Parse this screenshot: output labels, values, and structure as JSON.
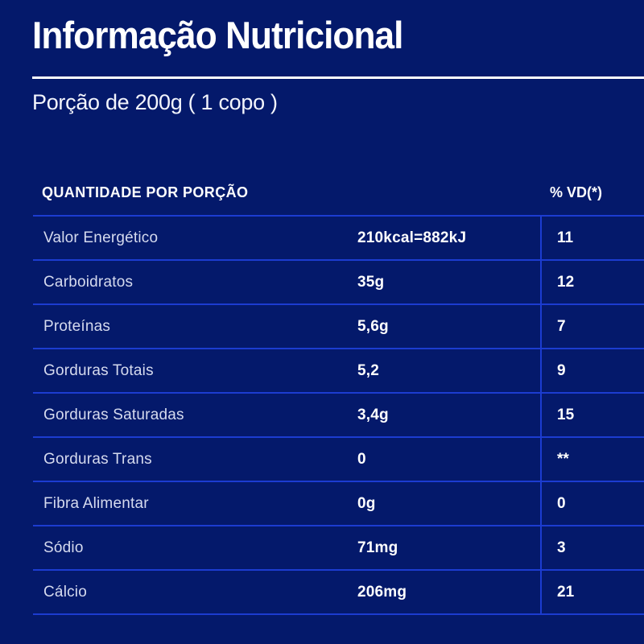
{
  "page": {
    "title": "Informação Nutricional",
    "serving": "Porção de 200g ( 1 copo )"
  },
  "table": {
    "headers": {
      "quantity": "QUANTIDADE POR PORÇÃO",
      "dv": "% VD(*)"
    },
    "rows": [
      {
        "label": "Valor Energético",
        "amount": "210kcal=882kJ",
        "dv": "11"
      },
      {
        "label": "Carboidratos",
        "amount": "35g",
        "dv": "12"
      },
      {
        "label": "Proteínas",
        "amount": "5,6g",
        "dv": "7"
      },
      {
        "label": "Gorduras Totais",
        "amount": "5,2",
        "dv": "9"
      },
      {
        "label": "Gorduras Saturadas",
        "amount": "3,4g",
        "dv": "15"
      },
      {
        "label": "Gorduras Trans",
        "amount": "0",
        "dv": "**"
      },
      {
        "label": "Fibra Alimentar",
        "amount": "0g",
        "dv": "0"
      },
      {
        "label": "Sódio",
        "amount": "71mg",
        "dv": "3"
      },
      {
        "label": "Cálcio",
        "amount": "206mg",
        "dv": "21"
      }
    ]
  },
  "colors": {
    "background": "#04196b",
    "separator_blue": "#1c3cd0",
    "title_rule_white": "#ffffff",
    "label_text": "#d5daee",
    "value_text": "#ffffff"
  }
}
